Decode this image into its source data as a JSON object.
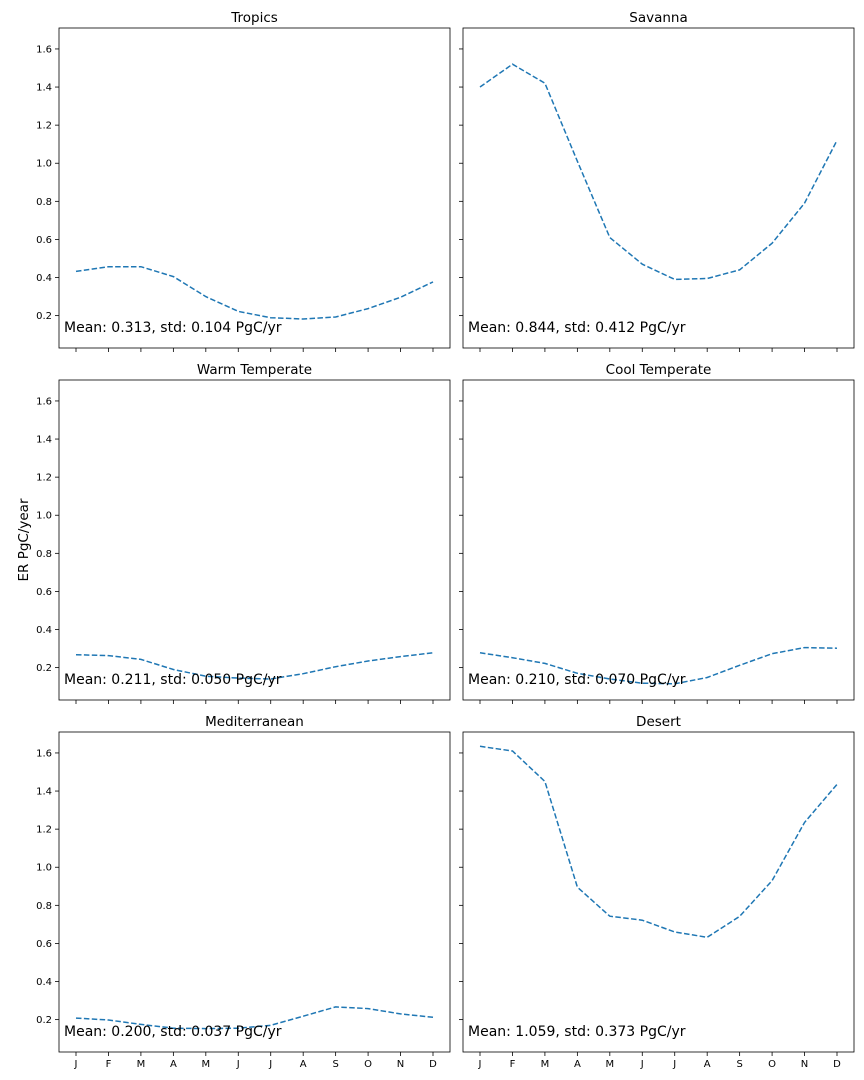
{
  "figure": {
    "ylabel": "ER PgC/year",
    "line_color": "#1f77b4"
  },
  "chart_data": [
    {
      "type": "line",
      "title": "Tropics",
      "categories": [
        "J",
        "F",
        "M",
        "A",
        "M",
        "J",
        "J",
        "A",
        "S",
        "O",
        "N",
        "D"
      ],
      "values": [
        0.432,
        0.457,
        0.457,
        0.405,
        0.3,
        0.222,
        0.189,
        0.182,
        0.193,
        0.237,
        0.296,
        0.377
      ],
      "ylim": [
        0.03,
        1.71
      ],
      "yticks": [
        0.2,
        0.4,
        0.6,
        0.8,
        1.0,
        1.2,
        1.4,
        1.6
      ],
      "annotation": "Mean: 0.313, std: 0.104 PgC/yr"
    },
    {
      "type": "line",
      "title": "Savanna",
      "categories": [
        "J",
        "F",
        "M",
        "A",
        "M",
        "J",
        "J",
        "A",
        "S",
        "O",
        "N",
        "D"
      ],
      "values": [
        1.4,
        1.52,
        1.42,
        1.01,
        0.61,
        0.47,
        0.39,
        0.395,
        0.44,
        0.58,
        0.79,
        1.12
      ],
      "ylim": [
        0.03,
        1.71
      ],
      "yticks": [
        0.2,
        0.4,
        0.6,
        0.8,
        1.0,
        1.2,
        1.4,
        1.6
      ],
      "annotation": "Mean: 0.844, std: 0.412 PgC/yr"
    },
    {
      "type": "line",
      "title": "Warm Temperate",
      "categories": [
        "J",
        "F",
        "M",
        "A",
        "M",
        "J",
        "J",
        "A",
        "S",
        "O",
        "N",
        "D"
      ],
      "values": [
        0.268,
        0.263,
        0.243,
        0.19,
        0.155,
        0.145,
        0.14,
        0.168,
        0.205,
        0.235,
        0.258,
        0.278
      ],
      "ylim": [
        0.03,
        1.71
      ],
      "yticks": [
        0.2,
        0.4,
        0.6,
        0.8,
        1.0,
        1.2,
        1.4,
        1.6
      ],
      "annotation": "Mean: 0.211, std: 0.050 PgC/yr"
    },
    {
      "type": "line",
      "title": "Cool Temperate",
      "categories": [
        "J",
        "F",
        "M",
        "A",
        "M",
        "J",
        "J",
        "A",
        "S",
        "O",
        "N",
        "D"
      ],
      "values": [
        0.278,
        0.252,
        0.222,
        0.17,
        0.14,
        0.118,
        0.115,
        0.148,
        0.212,
        0.273,
        0.305,
        0.302
      ],
      "ylim": [
        0.03,
        1.71
      ],
      "yticks": [
        0.2,
        0.4,
        0.6,
        0.8,
        1.0,
        1.2,
        1.4,
        1.6
      ],
      "annotation": "Mean: 0.210, std: 0.070 PgC/yr"
    },
    {
      "type": "line",
      "title": "Mediterranean",
      "categories": [
        "J",
        "F",
        "M",
        "A",
        "M",
        "J",
        "J",
        "A",
        "S",
        "O",
        "N",
        "D"
      ],
      "values": [
        0.208,
        0.198,
        0.175,
        0.155,
        0.153,
        0.155,
        0.17,
        0.218,
        0.267,
        0.258,
        0.23,
        0.212
      ],
      "ylim": [
        0.03,
        1.71
      ],
      "yticks": [
        0.2,
        0.4,
        0.6,
        0.8,
        1.0,
        1.2,
        1.4,
        1.6
      ],
      "annotation": "Mean: 0.200, std: 0.037 PgC/yr"
    },
    {
      "type": "line",
      "title": "Desert",
      "categories": [
        "J",
        "F",
        "M",
        "A",
        "M",
        "J",
        "J",
        "A",
        "S",
        "O",
        "N",
        "D"
      ],
      "values": [
        1.635,
        1.61,
        1.45,
        0.895,
        0.743,
        0.722,
        0.66,
        0.632,
        0.742,
        0.93,
        1.235,
        1.435
      ],
      "ylim": [
        0.03,
        1.71
      ],
      "yticks": [
        0.2,
        0.4,
        0.6,
        0.8,
        1.0,
        1.2,
        1.4,
        1.6
      ],
      "annotation": "Mean: 1.059, std: 0.373 PgC/yr"
    }
  ]
}
